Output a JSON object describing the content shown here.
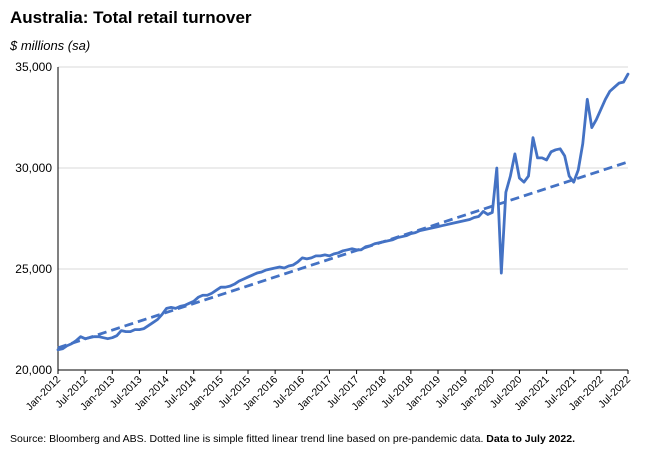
{
  "chart_data": {
    "type": "line",
    "title": "Australia: Total retail turnover",
    "ylabel": "$ millions (sa)",
    "ylim": [
      20000,
      35000
    ],
    "y_ticks": [
      20000,
      25000,
      30000,
      35000
    ],
    "y_tick_labels": [
      "20,000",
      "25,000",
      "30,000",
      "35,000"
    ],
    "x_range": [
      "2012-01",
      "2022-07"
    ],
    "x_tick_labels": [
      "Jan-2012",
      "Jul-2012",
      "Jan-2013",
      "Jul-2013",
      "Jan-2014",
      "Jul-2014",
      "Jan-2015",
      "Jul-2015",
      "Jan-2016",
      "Jul-2016",
      "Jan-2017",
      "Jul-2017",
      "Jan-2018",
      "Jul-2018",
      "Jan-2019",
      "Jul-2019",
      "Jan-2020",
      "Jul-2020",
      "Jan-2021",
      "Jul-2021",
      "Jan-2022",
      "Jul-2022"
    ],
    "grid": true,
    "legend": "none",
    "series": [
      {
        "style": "solid",
        "color": "#4472C4",
        "x": [
          "2012-01",
          "2012-02",
          "2012-03",
          "2012-04",
          "2012-05",
          "2012-06",
          "2012-07",
          "2012-08",
          "2012-09",
          "2012-10",
          "2012-11",
          "2012-12",
          "2013-01",
          "2013-02",
          "2013-03",
          "2013-04",
          "2013-05",
          "2013-06",
          "2013-07",
          "2013-08",
          "2013-09",
          "2013-10",
          "2013-11",
          "2013-12",
          "2014-01",
          "2014-02",
          "2014-03",
          "2014-04",
          "2014-05",
          "2014-06",
          "2014-07",
          "2014-08",
          "2014-09",
          "2014-10",
          "2014-11",
          "2014-12",
          "2015-01",
          "2015-02",
          "2015-03",
          "2015-04",
          "2015-05",
          "2015-06",
          "2015-07",
          "2015-08",
          "2015-09",
          "2015-10",
          "2015-11",
          "2015-12",
          "2016-01",
          "2016-02",
          "2016-03",
          "2016-04",
          "2016-05",
          "2016-06",
          "2016-07",
          "2016-08",
          "2016-09",
          "2016-10",
          "2016-11",
          "2016-12",
          "2017-01",
          "2017-02",
          "2017-03",
          "2017-04",
          "2017-05",
          "2017-06",
          "2017-07",
          "2017-08",
          "2017-09",
          "2017-10",
          "2017-11",
          "2017-12",
          "2018-01",
          "2018-02",
          "2018-03",
          "2018-04",
          "2018-05",
          "2018-06",
          "2018-07",
          "2018-08",
          "2018-09",
          "2018-10",
          "2018-11",
          "2018-12",
          "2019-01",
          "2019-02",
          "2019-03",
          "2019-04",
          "2019-05",
          "2019-06",
          "2019-07",
          "2019-08",
          "2019-09",
          "2019-10",
          "2019-11",
          "2019-12",
          "2020-01",
          "2020-02",
          "2020-03",
          "2020-04",
          "2020-05",
          "2020-06",
          "2020-07",
          "2020-08",
          "2020-09",
          "2020-10",
          "2020-11",
          "2020-12",
          "2021-01",
          "2021-02",
          "2021-03",
          "2021-04",
          "2021-05",
          "2021-06",
          "2021-07",
          "2021-08",
          "2021-09",
          "2021-10",
          "2021-11",
          "2021-12",
          "2022-01",
          "2022-02",
          "2022-03",
          "2022-04",
          "2022-05",
          "2022-06",
          "2022-07"
        ],
        "values": [
          21000,
          21050,
          21200,
          21300,
          21450,
          21650,
          21550,
          21600,
          21650,
          21650,
          21600,
          21550,
          21600,
          21700,
          21950,
          21900,
          21900,
          22000,
          22000,
          22050,
          22200,
          22350,
          22500,
          22750,
          23050,
          23100,
          23050,
          23150,
          23200,
          23300,
          23400,
          23600,
          23700,
          23700,
          23800,
          23950,
          24100,
          24100,
          24150,
          24250,
          24400,
          24500,
          24600,
          24700,
          24800,
          24850,
          24950,
          25000,
          25050,
          25100,
          25050,
          25150,
          25200,
          25350,
          25550,
          25500,
          25550,
          25650,
          25650,
          25700,
          25650,
          25750,
          25800,
          25900,
          25950,
          26000,
          25950,
          25950,
          26100,
          26150,
          26250,
          26300,
          26350,
          26400,
          26450,
          26550,
          26600,
          26650,
          26750,
          26800,
          26900,
          26950,
          27000,
          27050,
          27100,
          27150,
          27200,
          27250,
          27300,
          27350,
          27400,
          27450,
          27550,
          27600,
          27850,
          27700,
          27800,
          30000,
          24800,
          28800,
          29600,
          30700,
          29500,
          29300,
          29600,
          31500,
          30500,
          30500,
          30400,
          30800,
          30900,
          30950,
          30600,
          29600,
          29300,
          29900,
          31200,
          33400,
          32000,
          32400,
          32900,
          33400,
          33800,
          34000,
          34200,
          34250,
          34650
        ]
      },
      {
        "style": "dashed",
        "color": "#4472C4",
        "x": [
          "2012-01",
          "2022-07"
        ],
        "values": [
          21100,
          30300
        ]
      }
    ]
  },
  "source": {
    "text": "Source: Bloomberg and ABS.  Dotted line is simple fitted linear trend line based on pre-pandemic data. ",
    "bold": "Data to July 2022."
  }
}
